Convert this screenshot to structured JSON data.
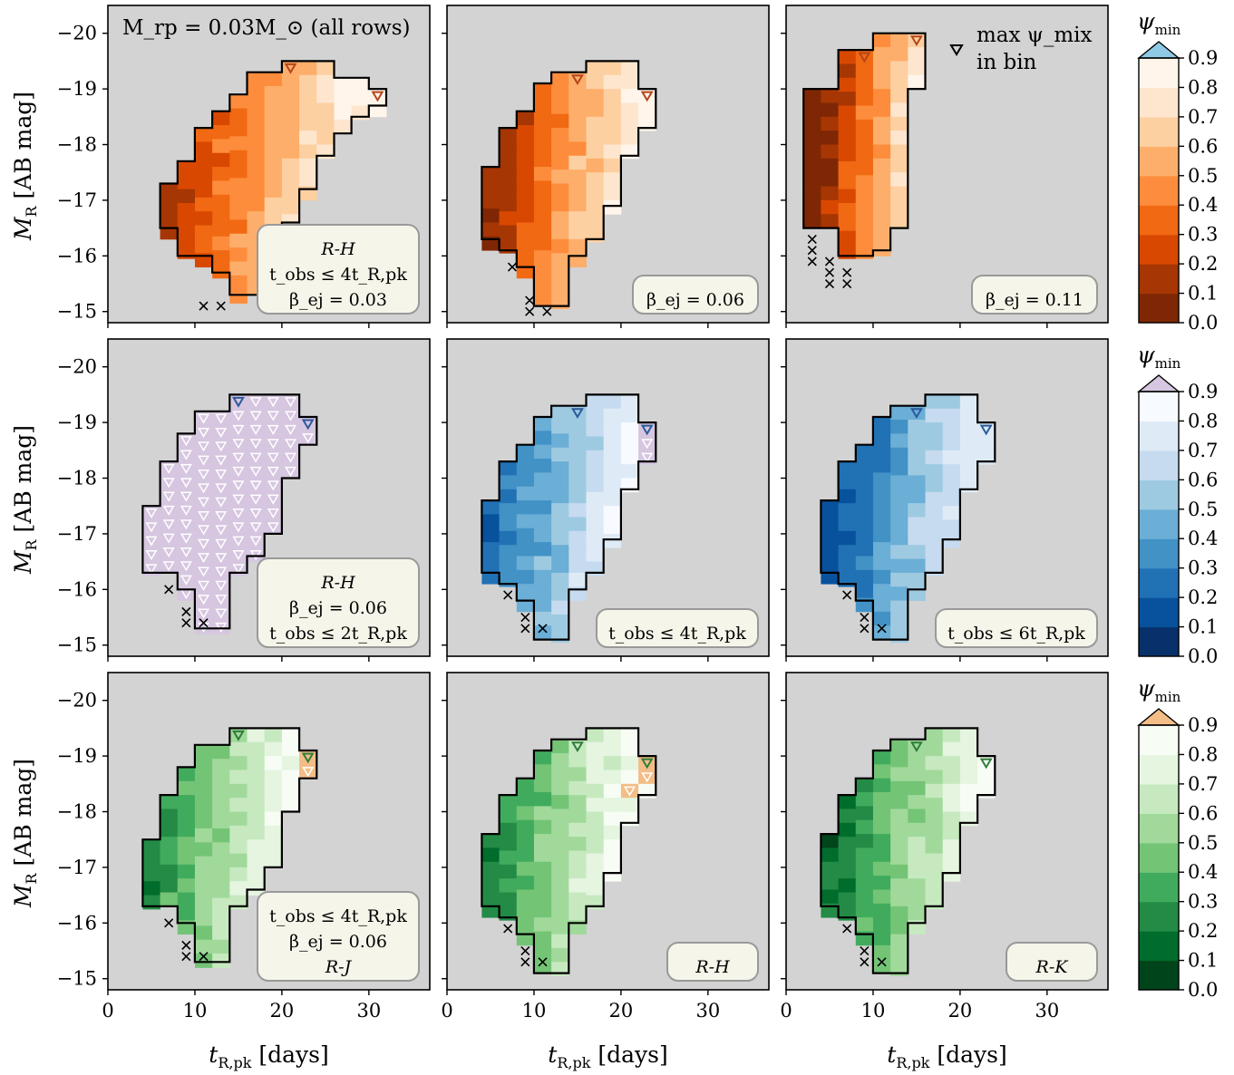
{
  "figure": {
    "header_note": "M_rp = 0.03M_⊙ (all rows)",
    "legend_marker_text": [
      "max ψ_mix",
      "in bin"
    ],
    "x_label_main": "t",
    "x_label_sub": "R,pk",
    "x_label_unit": "[days]",
    "y_label_main": "M",
    "y_label_sub": "R",
    "y_label_unit": "[AB mag]",
    "x_ticks": [
      "0",
      "10",
      "20",
      "30"
    ],
    "y_ticks": [
      "−20",
      "−19",
      "−18",
      "−17",
      "−16",
      "−15"
    ],
    "colorbar_label": "ψ",
    "colorbar_label_sub": "min",
    "colorbar_ticks": [
      "0.0",
      "0.1",
      "0.2",
      "0.3",
      "0.4",
      "0.5",
      "0.6",
      "0.7",
      "0.8",
      "0.9"
    ]
  },
  "chart_data": {
    "type": "heatmap",
    "x_axis": {
      "quantity": "t_R,pk [days]",
      "range": [
        0,
        37
      ],
      "ticks": [
        0,
        10,
        20,
        30
      ]
    },
    "y_axis": {
      "quantity": "M_R [AB mag]",
      "range": [
        -14.8,
        -20.5
      ],
      "inverted": true,
      "ticks": [
        -20,
        -19,
        -18,
        -17,
        -16,
        -15
      ]
    },
    "color_scale": {
      "quantity": "psi_min",
      "range": [
        0.0,
        0.9
      ],
      "extend": "max"
    },
    "rows": [
      {
        "colormap": [
          "#7f2704",
          "#a63603",
          "#d94801",
          "#f16913",
          "#fd8d3c",
          "#fdae6b",
          "#fdd0a2",
          "#fee6ce",
          "#fff5eb"
        ],
        "over_color": "#8ec9e5",
        "marker_color": "#b5451b",
        "panels": [
          {
            "label_lines": [
              "R-H",
              "t_obs ≤ 4t_R,pk",
              "β_ej = 0.03"
            ],
            "label_italic_first": true
          },
          {
            "label_lines": [
              "β_ej = 0.06"
            ]
          },
          {
            "label_lines": [
              "β_ej = 0.11"
            ]
          }
        ]
      },
      {
        "colormap": [
          "#08306b",
          "#08519c",
          "#2171b5",
          "#4292c6",
          "#6baed6",
          "#9ecae1",
          "#c6dbef",
          "#deebf7",
          "#f7fbff"
        ],
        "over_color": "#d6c6e0",
        "marker_color": "#2b5a9c",
        "panels": [
          {
            "label_lines": [
              "R-H",
              "β_ej = 0.06",
              "t_obs ≤ 2t_R,pk"
            ],
            "label_italic_first": true
          },
          {
            "label_lines": [
              "t_obs ≤ 4t_R,pk"
            ]
          },
          {
            "label_lines": [
              "t_obs ≤ 6t_R,pk"
            ]
          }
        ]
      },
      {
        "colormap": [
          "#00441b",
          "#006d2c",
          "#238b45",
          "#41ab5d",
          "#74c476",
          "#a1d99b",
          "#c7e9c0",
          "#e5f5e0",
          "#f7fcf5"
        ],
        "over_color": "#f3bd87",
        "marker_color": "#2e7d3a",
        "panels": [
          {
            "label_lines": [
              "t_obs ≤ 4t_R,pk",
              "β_ej = 0.06",
              "R-J"
            ],
            "label_italic_last": true
          },
          {
            "label_lines": [
              "R-H"
            ],
            "label_italic_first": true
          },
          {
            "label_lines": [
              "R-K"
            ],
            "label_italic_first": true
          }
        ]
      }
    ]
  }
}
